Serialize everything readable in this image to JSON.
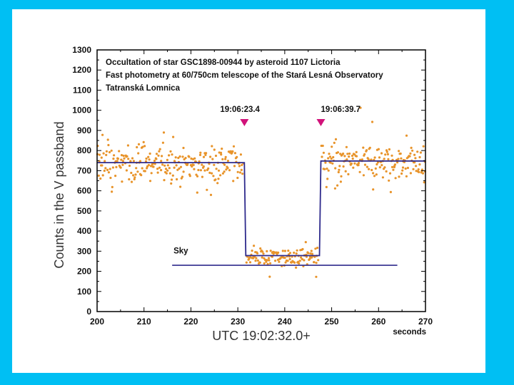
{
  "chart_data": {
    "type": "scatter",
    "title_lines": [
      "Occultation of star GSC1898-00944 by asteroid 1107 Lictoria",
      "Fast photometry at 60/750cm telescope of the Stará Lesná Observatory",
      "Tatranská Lomnica"
    ],
    "xlabel": "UTC 19:02:32.0+",
    "xunit": "seconds",
    "ylabel": "Counts in the V passband",
    "xlim": [
      200,
      270
    ],
    "ylim": [
      0,
      1300
    ],
    "xticks": [
      200,
      210,
      220,
      230,
      240,
      250,
      260,
      270
    ],
    "yticks": [
      0,
      100,
      200,
      300,
      400,
      500,
      600,
      700,
      800,
      900,
      1000,
      1100,
      1200,
      1300
    ],
    "annotations": [
      {
        "text": "19:06:23.4",
        "x": 231.4
      },
      {
        "text": "19:06:39.7",
        "x": 247.7
      }
    ],
    "sky_label": "Sky",
    "model_line": {
      "x": [
        200,
        231.4,
        231.7,
        247.4,
        247.7,
        270
      ],
      "y": [
        740,
        740,
        278,
        278,
        748,
        748
      ]
    },
    "sky_line": {
      "x": [
        216,
        264
      ],
      "y": [
        230,
        230
      ]
    },
    "series": [
      {
        "segments": [
          {
            "x_start": 200,
            "x_end": 231.2,
            "mean": 735,
            "spread": 80
          },
          {
            "x_start": 231.8,
            "x_end": 247.2,
            "mean": 270,
            "spread": 40
          },
          {
            "x_start": 247.8,
            "x_end": 270,
            "mean": 740,
            "spread": 85
          }
        ],
        "n_points": 560
      }
    ],
    "colors": {
      "points": "#e8942b",
      "line": "#2e2a8c",
      "marker": "#d1127a",
      "frame": "#000000"
    }
  }
}
